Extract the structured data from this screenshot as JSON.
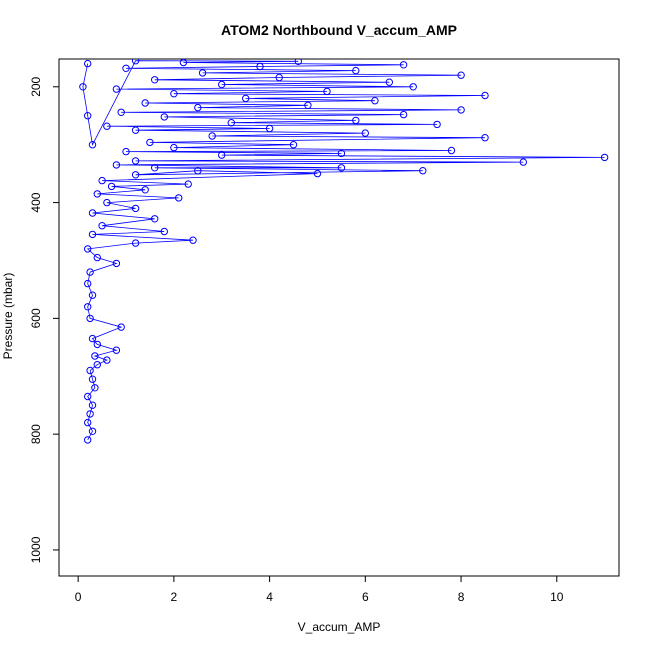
{
  "chart_data": {
    "type": "scatter",
    "title": "ATOM2 Northbound V_accum_AMP",
    "xlabel": "V_accum_AMP",
    "ylabel": "Pressure (mbar)",
    "xlim": [
      -0.4,
      11.3
    ],
    "ylim": [
      1045,
      152
    ],
    "y_reversed": true,
    "x_ticks": [
      0,
      2,
      4,
      6,
      8,
      10
    ],
    "y_ticks": [
      200,
      400,
      600,
      800,
      1000
    ],
    "x_tick_labels": [
      "0",
      "2",
      "4",
      "6",
      "8",
      "10"
    ],
    "y_tick_labels": [
      "200",
      "400",
      "600",
      "800",
      "1000"
    ],
    "grid": false,
    "marker": "open-circle",
    "connected": true,
    "color": "#0000ff",
    "series": [
      {
        "points": [
          [
            0.2,
            810
          ],
          [
            0.3,
            795
          ],
          [
            0.2,
            780
          ],
          [
            0.25,
            765
          ],
          [
            0.3,
            750
          ],
          [
            0.2,
            735
          ],
          [
            0.35,
            720
          ],
          [
            0.3,
            705
          ],
          [
            0.25,
            690
          ],
          [
            0.4,
            680
          ],
          [
            0.6,
            672
          ],
          [
            0.35,
            665
          ],
          [
            0.8,
            655
          ],
          [
            0.4,
            645
          ],
          [
            0.3,
            635
          ],
          [
            0.9,
            615
          ],
          [
            0.25,
            600
          ],
          [
            0.2,
            580
          ],
          [
            0.3,
            560
          ],
          [
            0.2,
            540
          ],
          [
            0.25,
            520
          ],
          [
            0.8,
            505
          ],
          [
            0.4,
            495
          ],
          [
            0.2,
            480
          ],
          [
            1.2,
            470
          ],
          [
            2.4,
            465
          ],
          [
            0.3,
            455
          ],
          [
            1.8,
            450
          ],
          [
            0.5,
            440
          ],
          [
            1.6,
            428
          ],
          [
            0.3,
            418
          ],
          [
            1.2,
            410
          ],
          [
            0.6,
            400
          ],
          [
            2.1,
            392
          ],
          [
            0.4,
            385
          ],
          [
            1.4,
            378
          ],
          [
            0.7,
            372
          ],
          [
            2.3,
            368
          ],
          [
            0.5,
            362
          ],
          [
            5.0,
            350
          ],
          [
            2.5,
            345
          ],
          [
            1.2,
            352
          ],
          [
            7.2,
            345
          ],
          [
            1.6,
            340
          ],
          [
            5.5,
            340
          ],
          [
            0.8,
            335
          ],
          [
            9.3,
            330
          ],
          [
            1.2,
            328
          ],
          [
            11.0,
            322
          ],
          [
            3.0,
            318
          ],
          [
            5.5,
            315
          ],
          [
            1.0,
            312
          ],
          [
            7.8,
            310
          ],
          [
            2.0,
            305
          ],
          [
            4.5,
            300
          ],
          [
            1.5,
            296
          ],
          [
            8.5,
            288
          ],
          [
            2.8,
            285
          ],
          [
            6.0,
            280
          ],
          [
            1.2,
            275
          ],
          [
            4.0,
            272
          ],
          [
            0.6,
            268
          ],
          [
            7.5,
            265
          ],
          [
            3.2,
            262
          ],
          [
            5.8,
            258
          ],
          [
            1.8,
            252
          ],
          [
            6.8,
            248
          ],
          [
            0.9,
            244
          ],
          [
            8.0,
            240
          ],
          [
            2.5,
            236
          ],
          [
            4.8,
            232
          ],
          [
            1.4,
            228
          ],
          [
            6.2,
            224
          ],
          [
            3.5,
            220
          ],
          [
            8.5,
            215
          ],
          [
            2.0,
            212
          ],
          [
            5.2,
            208
          ],
          [
            0.8,
            204
          ],
          [
            7.0,
            200
          ],
          [
            3.0,
            196
          ],
          [
            6.5,
            192
          ],
          [
            1.6,
            188
          ],
          [
            4.2,
            184
          ],
          [
            8.0,
            180
          ],
          [
            2.6,
            176
          ],
          [
            5.8,
            172
          ],
          [
            1.0,
            168
          ],
          [
            3.8,
            165
          ],
          [
            6.8,
            162
          ],
          [
            2.2,
            158
          ],
          [
            4.6,
            156
          ],
          [
            1.2,
            155
          ],
          [
            0.3,
            300
          ],
          [
            0.2,
            250
          ],
          [
            0.1,
            200
          ],
          [
            0.2,
            160
          ]
        ]
      }
    ]
  }
}
